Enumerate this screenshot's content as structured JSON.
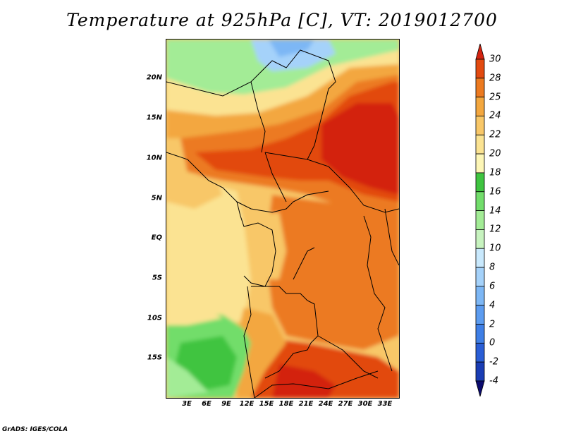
{
  "title": "Temperature at 925hPa [C], VT: 2019012700",
  "footer": "GrADS: IGES/COLA",
  "map": {
    "lat_labels": [
      "20N",
      "15N",
      "10N",
      "5N",
      "EQ",
      "5S",
      "10S",
      "15S"
    ],
    "lon_labels": [
      "3E",
      "6E",
      "9E",
      "12E",
      "15E",
      "18E",
      "21E",
      "24E",
      "27E",
      "30E",
      "33E"
    ]
  },
  "colorbar": {
    "levels": [
      "-4",
      "-2",
      "0",
      "2",
      "4",
      "6",
      "8",
      "10",
      "12",
      "14",
      "16",
      "18",
      "20",
      "22",
      "24",
      "25",
      "28",
      "30"
    ],
    "colors": [
      "#0b0b6e",
      "#1a3db4",
      "#2a5ed6",
      "#3f7fe6",
      "#5c9cf0",
      "#7db7f5",
      "#a5d2fa",
      "#c9e9fd",
      "#c7f3bf",
      "#a3ec96",
      "#72dd6b",
      "#3fc440",
      "#fdf6b6",
      "#fbe392",
      "#f8c768",
      "#f3a73f",
      "#ec7a20",
      "#e24a10",
      "#d32310"
    ]
  }
}
